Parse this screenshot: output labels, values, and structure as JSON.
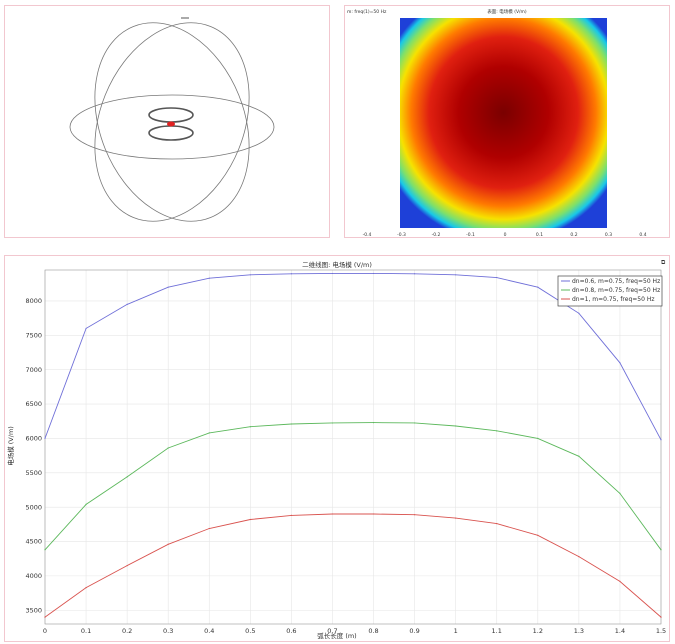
{
  "geometry_panel": {},
  "heatmap_panel": {
    "header_left": "m: freq(1)=50 Hz",
    "header_center": "表面: 电场模 (V/m)",
    "x_ticks": [
      "-0.4",
      "-0.3",
      "-0.2",
      "-0.1",
      "0",
      "0.1",
      "0.2",
      "0.3",
      "0.4"
    ]
  },
  "chart_data": {
    "type": "line",
    "title": "二维线图: 电场模 (V/m)",
    "xlabel": "弧长长度 (m)",
    "ylabel": "电场模 (V/m)",
    "xlim": [
      0,
      1.5
    ],
    "ylim": [
      3300,
      8450
    ],
    "x_ticks": [
      "0",
      "0.1",
      "0.2",
      "0.3",
      "0.4",
      "0.5",
      "0.6",
      "0.7",
      "0.8",
      "0.9",
      "1",
      "1.1",
      "1.2",
      "1.3",
      "1.4",
      "1.5"
    ],
    "y_ticks": [
      "3500",
      "4000",
      "4500",
      "5000",
      "5500",
      "6000",
      "6500",
      "7000",
      "7500",
      "8000"
    ],
    "grid": true,
    "legend_position": "top-right",
    "x": [
      0,
      0.1,
      0.2,
      0.3,
      0.4,
      0.5,
      0.6,
      0.7,
      0.8,
      0.9,
      1.0,
      1.1,
      1.2,
      1.3,
      1.4,
      1.5
    ],
    "series": [
      {
        "name": "dn=0.6, m=0.75, freq=50 Hz",
        "color": "#6f6fd8",
        "values": [
          6000,
          7600,
          7950,
          8200,
          8330,
          8380,
          8395,
          8400,
          8400,
          8395,
          8380,
          8340,
          8200,
          7820,
          7100,
          5980
        ]
      },
      {
        "name": "dn=0.8, m=0.75, freq=50 Hz",
        "color": "#5cb85c",
        "values": [
          4380,
          5040,
          5440,
          5860,
          6080,
          6170,
          6210,
          6225,
          6230,
          6225,
          6180,
          6110,
          6000,
          5740,
          5200,
          4380
        ]
      },
      {
        "name": "dn=1, m=0.75, freq=50 Hz",
        "color": "#d9534f",
        "values": [
          3400,
          3830,
          4150,
          4460,
          4690,
          4820,
          4880,
          4900,
          4900,
          4890,
          4840,
          4760,
          4590,
          4280,
          3920,
          3400
        ]
      }
    ]
  }
}
